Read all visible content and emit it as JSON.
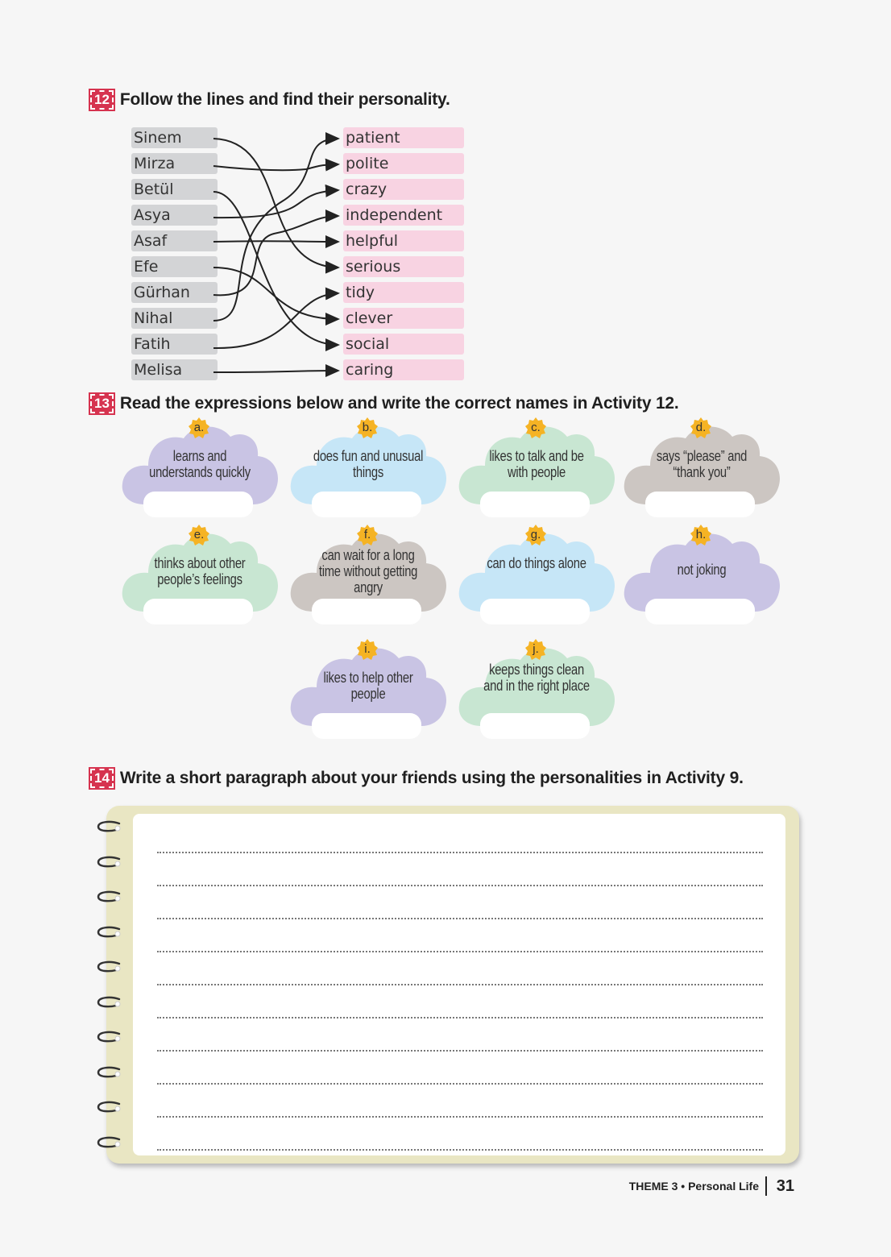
{
  "activity12": {
    "number": "12",
    "title": "Follow the lines and find their personality.",
    "names": [
      "Sinem",
      "Mirza",
      "Betül",
      "Asya",
      "Asaf",
      "Efe",
      "Gürhan",
      "Nihal",
      "Fatih",
      "Melisa"
    ],
    "traits": [
      "patient",
      "polite",
      "crazy",
      "independent",
      "helpful",
      "serious",
      "tidy",
      "clever",
      "social",
      "caring"
    ]
  },
  "activity13": {
    "number": "13",
    "title": "Read the expressions below and write the correct names in Activity 12.",
    "clouds": [
      {
        "letter": "a.",
        "text": "learns and understands quickly",
        "color": "#c9c4e4"
      },
      {
        "letter": "b.",
        "text": "does fun and unusual things",
        "color": "#c6e6f7"
      },
      {
        "letter": "c.",
        "text": "likes to talk and be with people",
        "color": "#c8e6d2"
      },
      {
        "letter": "d.",
        "text": "says “please” and “thank you”",
        "color": "#ccc6c2"
      },
      {
        "letter": "e.",
        "text": "thinks about other people’s feelings",
        "color": "#c8e6d2"
      },
      {
        "letter": "f.",
        "text": "can wait for a long time without getting angry",
        "color": "#ccc6c2"
      },
      {
        "letter": "g.",
        "text": "can do things alone",
        "color": "#c6e6f7"
      },
      {
        "letter": "h.",
        "text": "not joking",
        "color": "#c9c4e4"
      },
      {
        "letter": "i.",
        "text": "likes to help other people",
        "color": "#c9c4e4"
      },
      {
        "letter": "j.",
        "text": "keeps things clean and in the right place",
        "color": "#c8e6d2"
      }
    ]
  },
  "activity14": {
    "number": "14",
    "title": "Write a short paragraph about your friends using the personalities in Activity 9."
  },
  "footer": {
    "theme": "THEME 3 • Personal Life",
    "page": "31"
  },
  "colors": {
    "accent": "#d6334f",
    "name_box": "#d3d4d6",
    "trait_box": "#f8d3e2",
    "badge": "#f5b324",
    "notebook": "#e9e6c3"
  }
}
